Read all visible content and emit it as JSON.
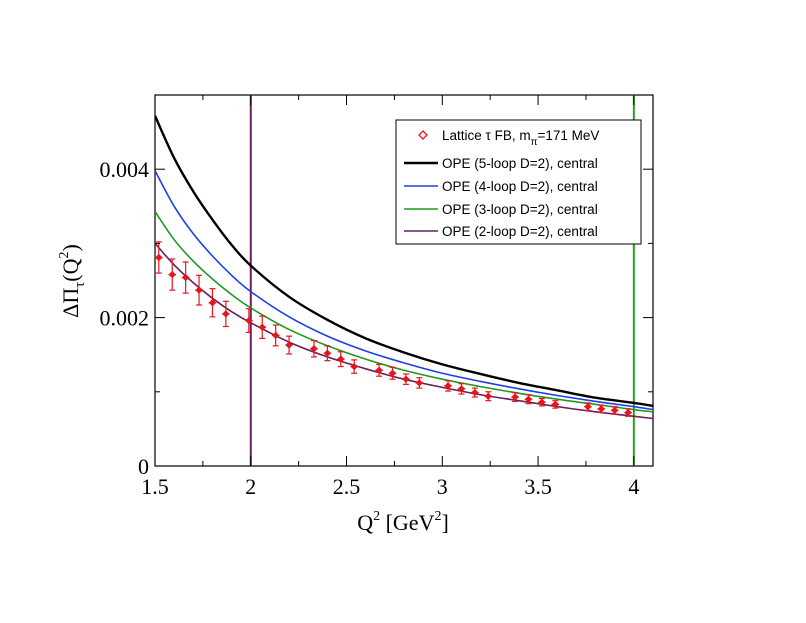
{
  "chart_data": {
    "type": "line",
    "title": "",
    "xlabel": {
      "base": "Q",
      "sup": "2",
      "unit_open": " [GeV",
      "unit_sup": "2",
      "unit_close": "]"
    },
    "ylabel": {
      "base": "ΔΠ",
      "sub": "τ",
      "open": "(Q",
      "sup": "2",
      "close": ")"
    },
    "xlim": [
      1.5,
      4.1
    ],
    "ylim": [
      0,
      0.005
    ],
    "xticks": [
      1.5,
      2,
      2.5,
      3,
      3.5,
      4
    ],
    "xtick_labels": [
      "1.5",
      "2",
      "2.5",
      "3",
      "3.5",
      "4"
    ],
    "yticks": [
      0,
      0.002,
      0.004
    ],
    "ytick_labels": [
      "0",
      "0.002",
      "0.004"
    ],
    "grid": false,
    "legend_position": "top-right",
    "vertical_lines": [
      {
        "x": 2.0,
        "color": "#6b1e5a"
      },
      {
        "x": 4.0,
        "color": "#22a322"
      }
    ],
    "series": [
      {
        "name": "OPE (5-loop D=2), central",
        "color": "#000000",
        "width": 2.4,
        "x": [
          1.5,
          1.6,
          1.7,
          1.8,
          1.9,
          2.0,
          2.2,
          2.4,
          2.6,
          2.8,
          3.0,
          3.2,
          3.4,
          3.6,
          3.8,
          4.0,
          4.1
        ],
        "y": [
          0.00472,
          0.00415,
          0.0037,
          0.00332,
          0.00298,
          0.0027,
          0.00228,
          0.00197,
          0.00172,
          0.00153,
          0.00137,
          0.00124,
          0.00112,
          0.00102,
          0.00092,
          0.00085,
          0.00081
        ]
      },
      {
        "name": "OPE (4-loop D=2), central",
        "color": "#1f3fe6",
        "width": 1.6,
        "x": [
          1.5,
          1.6,
          1.7,
          1.8,
          1.9,
          2.0,
          2.2,
          2.4,
          2.6,
          2.8,
          3.0,
          3.2,
          3.4,
          3.6,
          3.8,
          4.0,
          4.1
        ],
        "y": [
          0.00398,
          0.0035,
          0.00313,
          0.00283,
          0.00257,
          0.00235,
          0.00201,
          0.00175,
          0.00155,
          0.00139,
          0.00125,
          0.00114,
          0.00104,
          0.00095,
          0.00087,
          0.0008,
          0.00076
        ]
      },
      {
        "name": "OPE (3-loop D=2), central",
        "color": "#1f9a1f",
        "width": 1.6,
        "x": [
          1.5,
          1.6,
          1.7,
          1.8,
          1.9,
          2.0,
          2.2,
          2.4,
          2.6,
          2.8,
          3.0,
          3.2,
          3.4,
          3.6,
          3.8,
          4.0,
          4.1
        ],
        "y": [
          0.00343,
          0.00305,
          0.00276,
          0.00252,
          0.00231,
          0.00213,
          0.00184,
          0.00162,
          0.00144,
          0.00129,
          0.00117,
          0.00107,
          0.00098,
          0.0009,
          0.00083,
          0.00076,
          0.00073
        ]
      },
      {
        "name": "OPE (2-loop D=2), central",
        "color": "#6b1e5a",
        "width": 1.6,
        "x": [
          1.5,
          1.6,
          1.7,
          1.8,
          1.9,
          2.0,
          2.2,
          2.4,
          2.6,
          2.8,
          3.0,
          3.2,
          3.4,
          3.6,
          3.8,
          4.0,
          4.1
        ],
        "y": [
          0.003,
          0.00271,
          0.00247,
          0.00226,
          0.00208,
          0.00193,
          0.00167,
          0.00147,
          0.00131,
          0.00117,
          0.00106,
          0.00096,
          0.00088,
          0.0008,
          0.00073,
          0.00067,
          0.00064
        ]
      }
    ],
    "points": {
      "name": "Lattice τ FB, m",
      "name_sub": "π",
      "name_tail": "=171 MeV",
      "color": "#e8151b",
      "data": [
        {
          "x": 1.52,
          "y": 0.00281,
          "yerr": 0.00021,
          "xerr": 0.02
        },
        {
          "x": 1.59,
          "y": 0.00258,
          "yerr": 0.00021,
          "xerr": 0.02
        },
        {
          "x": 1.66,
          "y": 0.00254,
          "yerr": 0.00021,
          "xerr": 0.02
        },
        {
          "x": 1.73,
          "y": 0.00237,
          "yerr": 0.0002,
          "xerr": 0.02
        },
        {
          "x": 1.8,
          "y": 0.0022,
          "yerr": 0.00019,
          "xerr": 0.02
        },
        {
          "x": 1.87,
          "y": 0.00205,
          "yerr": 0.00017,
          "xerr": 0.02
        },
        {
          "x": 1.99,
          "y": 0.00196,
          "yerr": 0.00016,
          "xerr": 0.02
        },
        {
          "x": 2.06,
          "y": 0.00187,
          "yerr": 0.00015,
          "xerr": 0.02
        },
        {
          "x": 2.13,
          "y": 0.00176,
          "yerr": 0.00014,
          "xerr": 0.02
        },
        {
          "x": 2.2,
          "y": 0.00163,
          "yerr": 0.00012,
          "xerr": 0.02
        },
        {
          "x": 2.33,
          "y": 0.00158,
          "yerr": 0.00011,
          "xerr": 0.02
        },
        {
          "x": 2.4,
          "y": 0.00152,
          "yerr": 0.0001,
          "xerr": 0.02
        },
        {
          "x": 2.47,
          "y": 0.00144,
          "yerr": 0.0001,
          "xerr": 0.02
        },
        {
          "x": 2.54,
          "y": 0.00134,
          "yerr": 9e-05,
          "xerr": 0.02
        },
        {
          "x": 2.67,
          "y": 0.00129,
          "yerr": 8e-05,
          "xerr": 0.02
        },
        {
          "x": 2.74,
          "y": 0.00125,
          "yerr": 8e-05,
          "xerr": 0.02
        },
        {
          "x": 2.81,
          "y": 0.00117,
          "yerr": 7e-05,
          "xerr": 0.02
        },
        {
          "x": 2.88,
          "y": 0.00112,
          "yerr": 7e-05,
          "xerr": 0.02
        },
        {
          "x": 3.03,
          "y": 0.00108,
          "yerr": 7e-05,
          "xerr": 0.02
        },
        {
          "x": 3.1,
          "y": 0.00104,
          "yerr": 7e-05,
          "xerr": 0.02
        },
        {
          "x": 3.17,
          "y": 0.00099,
          "yerr": 6e-05,
          "xerr": 0.02
        },
        {
          "x": 3.24,
          "y": 0.00094,
          "yerr": 6e-05,
          "xerr": 0.02
        },
        {
          "x": 3.38,
          "y": 0.00093,
          "yerr": 6e-05,
          "xerr": 0.02
        },
        {
          "x": 3.45,
          "y": 0.0009,
          "yerr": 6e-05,
          "xerr": 0.02
        },
        {
          "x": 3.52,
          "y": 0.00086,
          "yerr": 5e-05,
          "xerr": 0.02
        },
        {
          "x": 3.59,
          "y": 0.00083,
          "yerr": 5e-05,
          "xerr": 0.02
        },
        {
          "x": 3.76,
          "y": 0.0008,
          "yerr": 5e-05,
          "xerr": 0.02
        },
        {
          "x": 3.83,
          "y": 0.00077,
          "yerr": 5e-05,
          "xerr": 0.02
        },
        {
          "x": 3.9,
          "y": 0.00075,
          "yerr": 5e-05,
          "xerr": 0.02
        },
        {
          "x": 3.97,
          "y": 0.00072,
          "yerr": 5e-05,
          "xerr": 0.02
        }
      ]
    }
  }
}
